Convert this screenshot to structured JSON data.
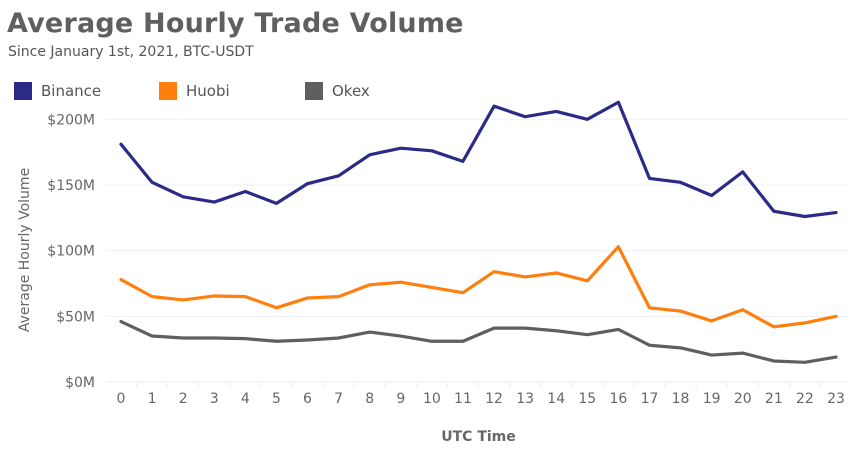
{
  "chart_data": {
    "type": "line",
    "title": "Average Hourly Trade Volume",
    "subtitle": "Since January 1st, 2021, BTC-USDT",
    "xlabel": "UTC Time",
    "ylabel": "Average Hourly Volume",
    "ylim": [
      0,
      200
    ],
    "yticks": [
      0,
      50,
      100,
      150,
      200
    ],
    "ytick_labels": [
      "$0M",
      "$50M",
      "$100M",
      "$150M",
      "$200M"
    ],
    "x": [
      0,
      1,
      2,
      3,
      4,
      5,
      6,
      7,
      8,
      9,
      10,
      11,
      12,
      13,
      14,
      15,
      16,
      17,
      18,
      19,
      20,
      21,
      22,
      23
    ],
    "x_labels": [
      "0",
      "1",
      "2",
      "3",
      "4",
      "5",
      "6",
      "7",
      "8",
      "9",
      "10",
      "11",
      "12",
      "13",
      "14",
      "15",
      "16",
      "17",
      "18",
      "19",
      "20",
      "21",
      "22",
      "23"
    ],
    "grid": true,
    "legend_position": "top-left",
    "series": [
      {
        "name": "Binance",
        "color": "#2b2a87",
        "values": [
          181,
          152,
          141,
          137,
          145,
          136,
          151,
          157,
          173,
          178,
          176,
          168,
          210,
          202,
          206,
          200,
          213,
          155,
          152,
          142,
          160,
          130,
          126,
          129
        ]
      },
      {
        "name": "Huobi",
        "color": "#ff7f0e",
        "values": [
          78,
          65,
          62.5,
          65.5,
          65,
          56.5,
          64,
          65,
          74,
          76,
          72,
          68,
          84,
          80,
          83,
          77,
          103,
          56.5,
          54,
          46.5,
          55,
          42,
          45,
          50
        ]
      },
      {
        "name": "Okex",
        "color": "#5f5f5f",
        "values": [
          46,
          35,
          33.5,
          33.5,
          33,
          31,
          32,
          33.5,
          38,
          35,
          31,
          31,
          41,
          41,
          39,
          36,
          40,
          28,
          26,
          20.5,
          22,
          16,
          15,
          19
        ]
      }
    ]
  }
}
